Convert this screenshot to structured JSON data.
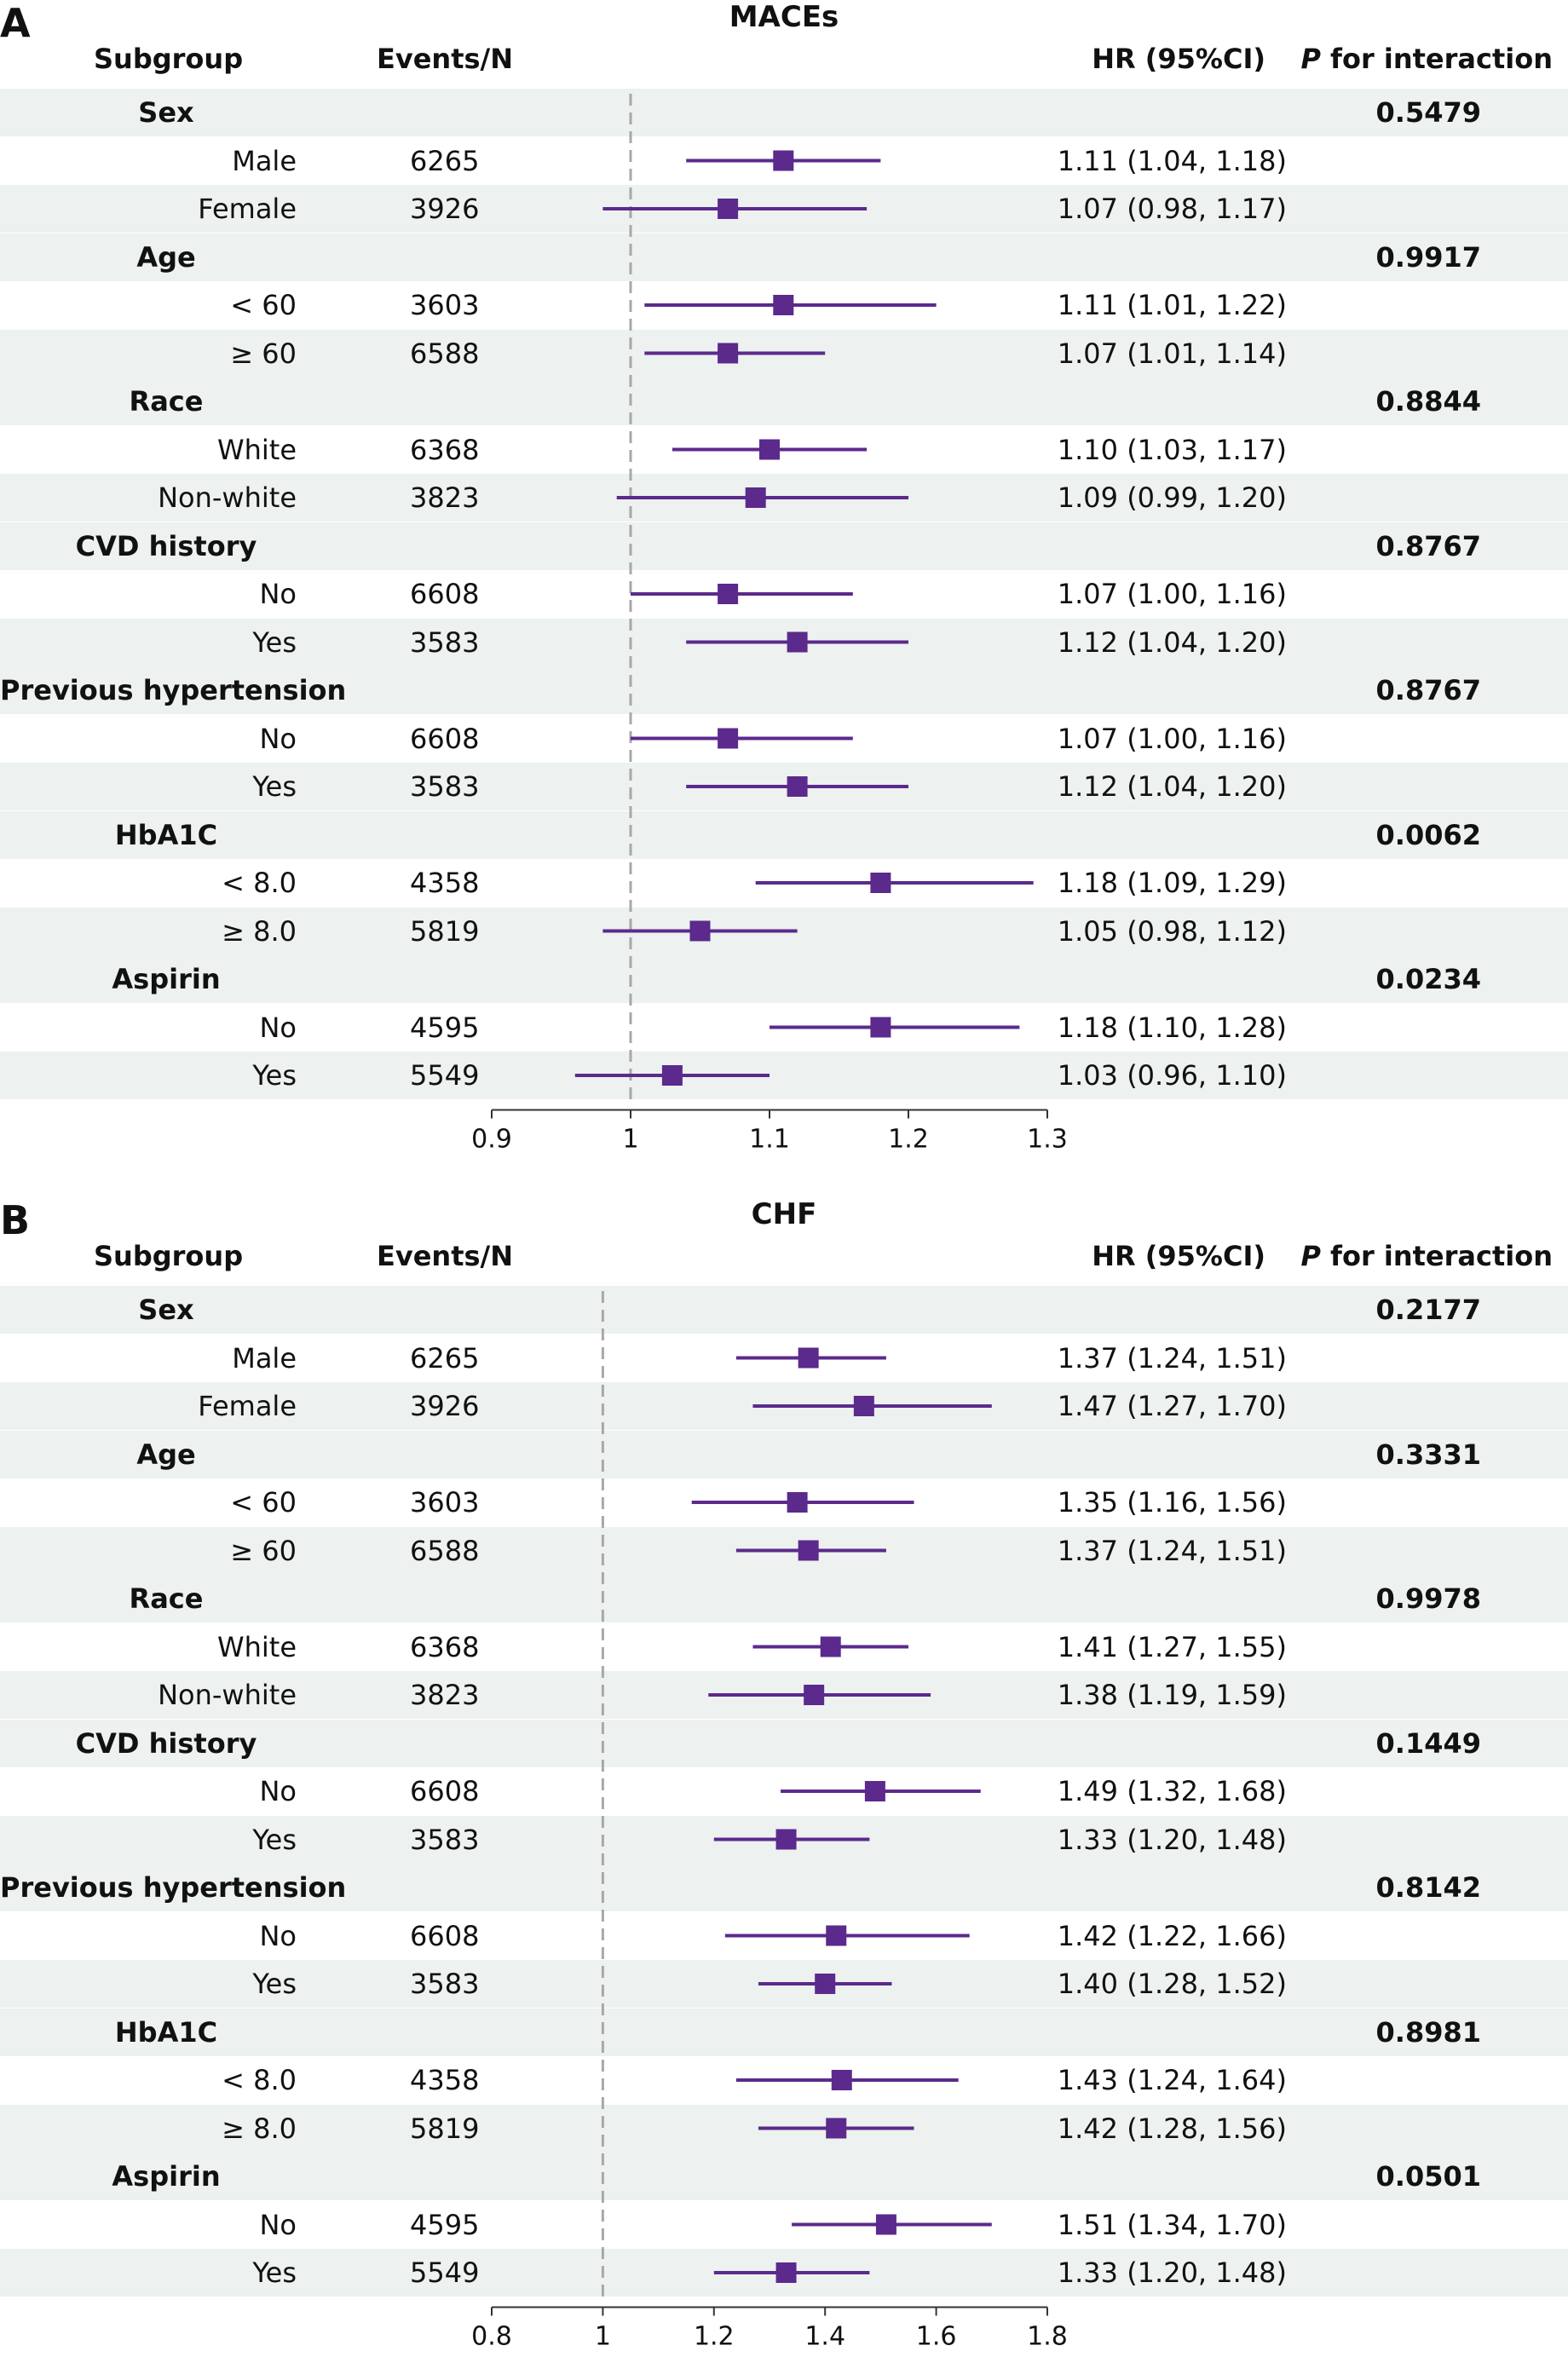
{
  "colors": {
    "marker": "#5b2a8c",
    "shade": "#edf1ef",
    "refline": "#a8a8a8",
    "axis": "#333333"
  },
  "columns": {
    "subgroup": "Subgroup",
    "events": "Events/N",
    "hr": "HR (95%CI)",
    "p_italic": "P",
    "p_rest": " for interaction"
  },
  "chart_data": [
    {
      "panel": "A",
      "title": "MACEs",
      "type": "forest",
      "reference_line": 1,
      "xlim": [
        0.9,
        1.3
      ],
      "xticks": [
        "0.9",
        "1",
        "1.1",
        "1.2",
        "1.3"
      ],
      "groups": [
        {
          "name": "Sex",
          "p": "0.5479",
          "rows": [
            {
              "label": "Male",
              "events": "6265",
              "hr": 1.11,
              "lo": 1.04,
              "hi": 1.18,
              "text": "1.11 (1.04, 1.18)"
            },
            {
              "label": "Female",
              "events": "3926",
              "hr": 1.07,
              "lo": 0.98,
              "hi": 1.17,
              "text": "1.07 (0.98, 1.17)"
            }
          ]
        },
        {
          "name": "Age",
          "p": "0.9917",
          "rows": [
            {
              "label": "< 60",
              "events": "3603",
              "hr": 1.11,
              "lo": 1.01,
              "hi": 1.22,
              "text": "1.11 (1.01, 1.22)"
            },
            {
              "label": "≥ 60",
              "events": "6588",
              "hr": 1.07,
              "lo": 1.01,
              "hi": 1.14,
              "text": "1.07 (1.01, 1.14)"
            }
          ]
        },
        {
          "name": "Race",
          "p": "0.8844",
          "rows": [
            {
              "label": "White",
              "events": "6368",
              "hr": 1.1,
              "lo": 1.03,
              "hi": 1.17,
              "text": "1.10 (1.03, 1.17)"
            },
            {
              "label": "Non-white",
              "events": "3823",
              "hr": 1.09,
              "lo": 0.99,
              "hi": 1.2,
              "text": "1.09 (0.99, 1.20)"
            }
          ]
        },
        {
          "name": "CVD history",
          "p": "0.8767",
          "rows": [
            {
              "label": "No",
              "events": "6608",
              "hr": 1.07,
              "lo": 1.0,
              "hi": 1.16,
              "text": "1.07 (1.00, 1.16)"
            },
            {
              "label": "Yes",
              "events": "3583",
              "hr": 1.12,
              "lo": 1.04,
              "hi": 1.2,
              "text": "1.12 (1.04, 1.20)"
            }
          ]
        },
        {
          "name": "Previous hypertension",
          "p": "0.8767",
          "rows": [
            {
              "label": "No",
              "events": "6608",
              "hr": 1.07,
              "lo": 1.0,
              "hi": 1.16,
              "text": "1.07 (1.00, 1.16)"
            },
            {
              "label": "Yes",
              "events": "3583",
              "hr": 1.12,
              "lo": 1.04,
              "hi": 1.2,
              "text": "1.12 (1.04, 1.20)"
            }
          ]
        },
        {
          "name": "HbA1C",
          "p": "0.0062",
          "rows": [
            {
              "label": "< 8.0",
              "events": "4358",
              "hr": 1.18,
              "lo": 1.09,
              "hi": 1.29,
              "text": "1.18 (1.09, 1.29)"
            },
            {
              "label": "≥ 8.0",
              "events": "5819",
              "hr": 1.05,
              "lo": 0.98,
              "hi": 1.12,
              "text": "1.05 (0.98, 1.12)"
            }
          ]
        },
        {
          "name": "Aspirin",
          "p": "0.0234",
          "rows": [
            {
              "label": "No",
              "events": "4595",
              "hr": 1.18,
              "lo": 1.1,
              "hi": 1.28,
              "text": "1.18 (1.10, 1.28)"
            },
            {
              "label": "Yes",
              "events": "5549",
              "hr": 1.03,
              "lo": 0.96,
              "hi": 1.1,
              "text": "1.03 (0.96, 1.10)"
            }
          ]
        }
      ]
    },
    {
      "panel": "B",
      "title": "CHF",
      "type": "forest",
      "reference_line": 1,
      "xlim": [
        0.8,
        1.8
      ],
      "xticks": [
        "0.8",
        "1",
        "1.2",
        "1.4",
        "1.6",
        "1.8"
      ],
      "groups": [
        {
          "name": "Sex",
          "p": "0.2177",
          "rows": [
            {
              "label": "Male",
              "events": "6265",
              "hr": 1.37,
              "lo": 1.24,
              "hi": 1.51,
              "text": "1.37 (1.24, 1.51)"
            },
            {
              "label": "Female",
              "events": "3926",
              "hr": 1.47,
              "lo": 1.27,
              "hi": 1.7,
              "text": "1.47 (1.27, 1.70)"
            }
          ]
        },
        {
          "name": "Age",
          "p": "0.3331",
          "rows": [
            {
              "label": "< 60",
              "events": "3603",
              "hr": 1.35,
              "lo": 1.16,
              "hi": 1.56,
              "text": "1.35 (1.16, 1.56)"
            },
            {
              "label": "≥ 60",
              "events": "6588",
              "hr": 1.37,
              "lo": 1.24,
              "hi": 1.51,
              "text": "1.37 (1.24, 1.51)"
            }
          ]
        },
        {
          "name": "Race",
          "p": "0.9978",
          "rows": [
            {
              "label": "White",
              "events": "6368",
              "hr": 1.41,
              "lo": 1.27,
              "hi": 1.55,
              "text": "1.41 (1.27, 1.55)"
            },
            {
              "label": "Non-white",
              "events": "3823",
              "hr": 1.38,
              "lo": 1.19,
              "hi": 1.59,
              "text": "1.38 (1.19, 1.59)"
            }
          ]
        },
        {
          "name": "CVD history",
          "p": "0.1449",
          "rows": [
            {
              "label": "No",
              "events": "6608",
              "hr": 1.49,
              "lo": 1.32,
              "hi": 1.68,
              "text": "1.49 (1.32, 1.68)"
            },
            {
              "label": "Yes",
              "events": "3583",
              "hr": 1.33,
              "lo": 1.2,
              "hi": 1.48,
              "text": "1.33 (1.20, 1.48)"
            }
          ]
        },
        {
          "name": "Previous hypertension",
          "p": "0.8142",
          "rows": [
            {
              "label": "No",
              "events": "6608",
              "hr": 1.42,
              "lo": 1.22,
              "hi": 1.66,
              "text": "1.42 (1.22, 1.66)"
            },
            {
              "label": "Yes",
              "events": "3583",
              "hr": 1.4,
              "lo": 1.28,
              "hi": 1.52,
              "text": "1.40 (1.28, 1.52)"
            }
          ]
        },
        {
          "name": "HbA1C",
          "p": "0.8981",
          "rows": [
            {
              "label": "< 8.0",
              "events": "4358",
              "hr": 1.43,
              "lo": 1.24,
              "hi": 1.64,
              "text": "1.43 (1.24, 1.64)"
            },
            {
              "label": "≥ 8.0",
              "events": "5819",
              "hr": 1.42,
              "lo": 1.28,
              "hi": 1.56,
              "text": "1.42 (1.28, 1.56)"
            }
          ]
        },
        {
          "name": "Aspirin",
          "p": "0.0501",
          "rows": [
            {
              "label": "No",
              "events": "4595",
              "hr": 1.51,
              "lo": 1.34,
              "hi": 1.7,
              "text": "1.51 (1.34, 1.70)"
            },
            {
              "label": "Yes",
              "events": "5549",
              "hr": 1.33,
              "lo": 1.2,
              "hi": 1.48,
              "text": "1.33 (1.20, 1.48)"
            }
          ]
        }
      ]
    }
  ]
}
